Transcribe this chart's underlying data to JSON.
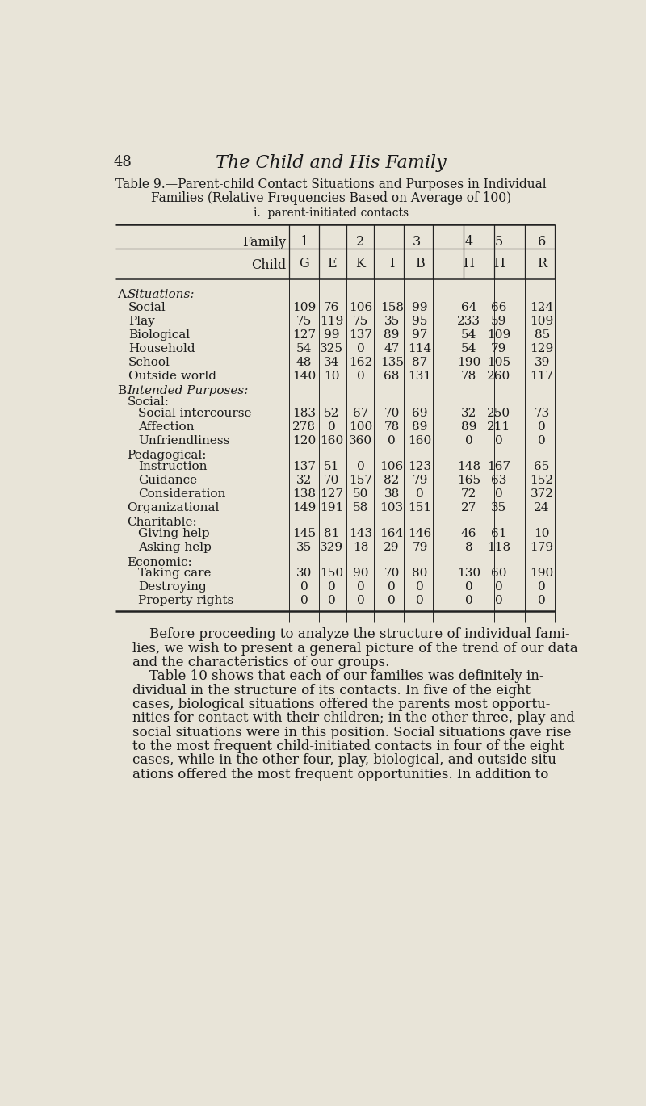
{
  "bg_color": "#e8e4d8",
  "page_number": "48",
  "book_title": "The Child and His Family",
  "table_title_line1": "Table 9.—Parent-child Contact Situations and Purposes in Individual",
  "table_title_line2": "Families (Relative Frequencies Based on Average of 100)",
  "section_label": "i.  parent‐initiated contacts",
  "rows_a": [
    [
      "Social",
      "109",
      "76",
      "106",
      "158",
      "99",
      "64",
      "66",
      "124"
    ],
    [
      "Play",
      "75",
      "119",
      "75",
      "35",
      "95",
      "233",
      "59",
      "109"
    ],
    [
      "Biological",
      "127",
      "99",
      "137",
      "89",
      "97",
      "54",
      "109",
      "85"
    ],
    [
      "Household",
      "54",
      "325",
      "0",
      "47",
      "114",
      "54",
      "79",
      "129"
    ],
    [
      "School",
      "48",
      "34",
      "162",
      "135",
      "87",
      "190",
      "105",
      "39"
    ],
    [
      "Outside world",
      "140",
      "10",
      "0",
      "68",
      "131",
      "78",
      "260",
      "117"
    ]
  ],
  "rows_social": [
    [
      "Social intercourse",
      "183",
      "52",
      "67",
      "70",
      "69",
      "32",
      "250",
      "73"
    ],
    [
      "Affection",
      "278",
      "0",
      "100",
      "78",
      "89",
      "89",
      "211",
      "0"
    ],
    [
      "Unfriendliness",
      "120",
      "160",
      "360",
      "0",
      "160",
      "0",
      "0",
      "0"
    ]
  ],
  "rows_pedagogical": [
    [
      "Instruction",
      "137",
      "51",
      "0",
      "106",
      "123",
      "148",
      "167",
      "65"
    ],
    [
      "Guidance",
      "32",
      "70",
      "157",
      "82",
      "79",
      "165",
      "63",
      "152"
    ],
    [
      "Consideration",
      "138",
      "127",
      "50",
      "38",
      "0",
      "72",
      "0",
      "372"
    ]
  ],
  "rows_organizational": [
    [
      "Organizational",
      "149",
      "191",
      "58",
      "103",
      "151",
      "27",
      "35",
      "24"
    ]
  ],
  "rows_charitable": [
    [
      "Giving help",
      "145",
      "81",
      "143",
      "164",
      "146",
      "46",
      "61",
      "10"
    ],
    [
      "Asking help",
      "35",
      "329",
      "18",
      "29",
      "79",
      "8",
      "118",
      "179"
    ]
  ],
  "rows_economic": [
    [
      "Taking care",
      "30",
      "150",
      "90",
      "70",
      "80",
      "130",
      "60",
      "190"
    ],
    [
      "Destroying",
      "0",
      "0",
      "0",
      "0",
      "0",
      "0",
      "0",
      "0"
    ],
    [
      "Property rights",
      "0",
      "0",
      "0",
      "0",
      "0",
      "0",
      "0",
      "0"
    ]
  ],
  "body_lines": [
    "    Before proceeding to analyze the structure of individual fami-",
    "lies, we wish to present a general picture of the trend of our data",
    "and the characteristics of our groups.",
    "    Table 10 shows that each of our families was definitely in-",
    "dividual in the structure of its contacts. In five of the eight",
    "cases, biological situations offered the parents most opportu-",
    "nities for contact with their children; in the other three, play and",
    "social situations were in this position. Social situations gave rise",
    "to the most frequent child-initiated contacts in four of the eight",
    "cases, while in the other four, play, biological, and outside situ-",
    "ations offered the most frequent opportunities. In addition to"
  ]
}
